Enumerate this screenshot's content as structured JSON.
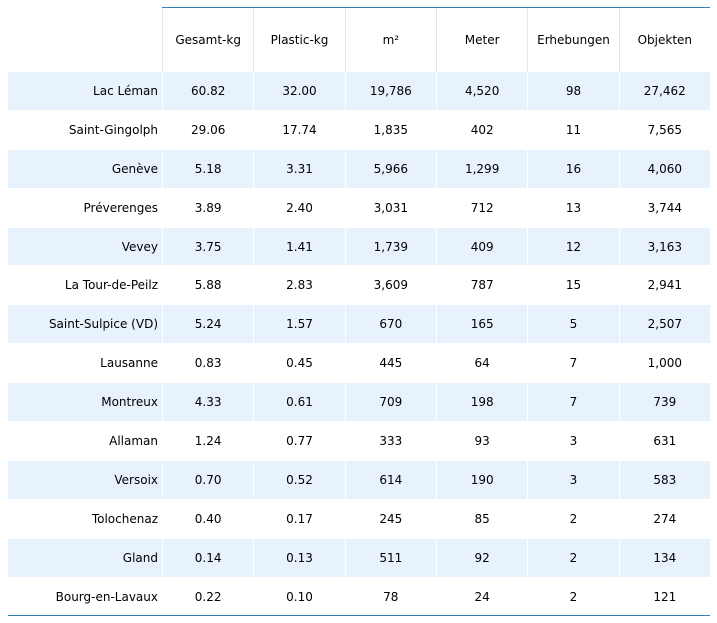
{
  "table": {
    "columns": [
      "",
      "Gesamt-kg",
      "Plastic-kg",
      "m²",
      "Meter",
      "Erhebungen",
      "Objekten"
    ],
    "rows": [
      [
        "Lac Léman",
        "60.82",
        "32.00",
        "19,786",
        "4,520",
        "98",
        "27,462"
      ],
      [
        "Saint-Gingolph",
        "29.06",
        "17.74",
        "1,835",
        "402",
        "11",
        "7,565"
      ],
      [
        "Genève",
        "5.18",
        "3.31",
        "5,966",
        "1,299",
        "16",
        "4,060"
      ],
      [
        "Préverenges",
        "3.89",
        "2.40",
        "3,031",
        "712",
        "13",
        "3,744"
      ],
      [
        "Vevey",
        "3.75",
        "1.41",
        "1,739",
        "409",
        "12",
        "3,163"
      ],
      [
        "La Tour-de-Peilz",
        "5.88",
        "2.83",
        "3,609",
        "787",
        "15",
        "2,941"
      ],
      [
        "Saint-Sulpice (VD)",
        "5.24",
        "1.57",
        "670",
        "165",
        "5",
        "2,507"
      ],
      [
        "Lausanne",
        "0.83",
        "0.45",
        "445",
        "64",
        "7",
        "1,000"
      ],
      [
        "Montreux",
        "4.33",
        "0.61",
        "709",
        "198",
        "7",
        "739"
      ],
      [
        "Allaman",
        "1.24",
        "0.77",
        "333",
        "93",
        "3",
        "631"
      ],
      [
        "Versoix",
        "0.70",
        "0.52",
        "614",
        "190",
        "3",
        "583"
      ],
      [
        "Tolochenaz",
        "0.40",
        "0.17",
        "245",
        "85",
        "2",
        "274"
      ],
      [
        "Gland",
        "0.14",
        "0.13",
        "511",
        "92",
        "2",
        "134"
      ],
      [
        "Bourg-en-Lavaux",
        "0.22",
        "0.10",
        "78",
        "24",
        "2",
        "121"
      ]
    ],
    "colors": {
      "rule": "#2f82b8",
      "shaded_row": "#e8f2fd",
      "plain_row": "#ffffff"
    }
  }
}
